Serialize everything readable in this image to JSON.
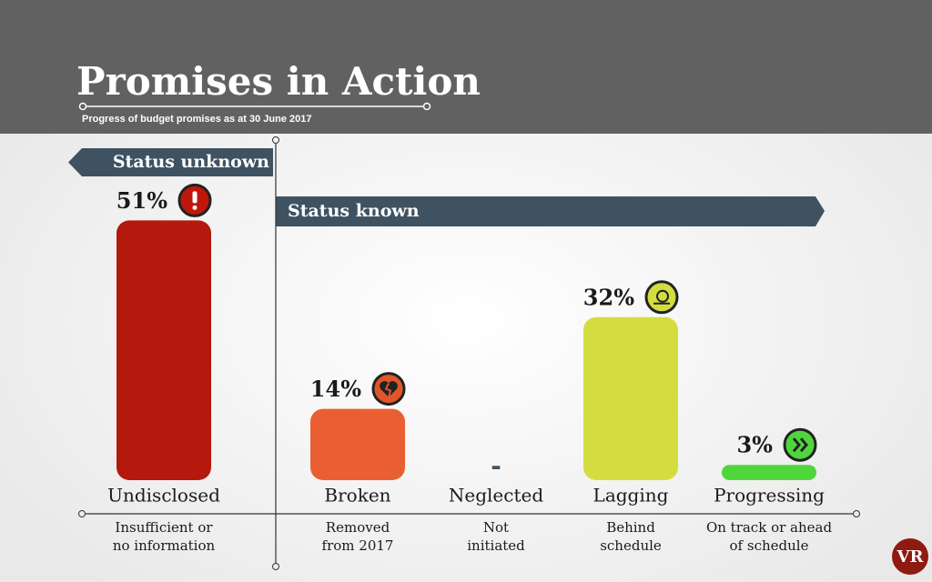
{
  "chart_data": {
    "type": "bar",
    "title": "Promises in Action",
    "subtitle": "Progress of budget promises as at 30 June 2017",
    "banner_unknown": "Status unknown",
    "banner_known": "Status known",
    "categories": [
      "Undisclosed",
      "Broken",
      "Neglected",
      "Lagging",
      "Progressing"
    ],
    "descriptions": [
      [
        "Insufficient or",
        "no information"
      ],
      [
        "Removed",
        "from 2017"
      ],
      [
        "Not",
        "initiated"
      ],
      [
        "Behind",
        "schedule"
      ],
      [
        "On track or ahead",
        "of schedule"
      ]
    ],
    "values": [
      51,
      14,
      null,
      32,
      3
    ],
    "value_labels": [
      "51%",
      "14%",
      "-",
      "32%",
      "3%"
    ],
    "colors": [
      "#b3190c",
      "#e95f31",
      "#3e5364",
      "#d4dd40",
      "#4fd63c"
    ],
    "logo": "VR"
  }
}
